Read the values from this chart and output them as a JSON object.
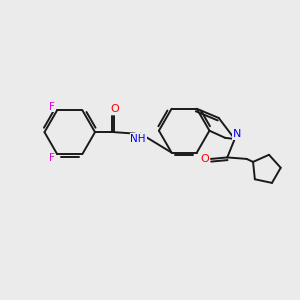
{
  "background_color": "#ebebeb",
  "bond_color": "#1a1a1a",
  "atom_colors": {
    "F": "#e000e0",
    "O": "#ff0000",
    "N": "#0000ee",
    "C": "#1a1a1a"
  },
  "lw": 1.4,
  "figsize": [
    3.0,
    3.0
  ],
  "dpi": 100
}
